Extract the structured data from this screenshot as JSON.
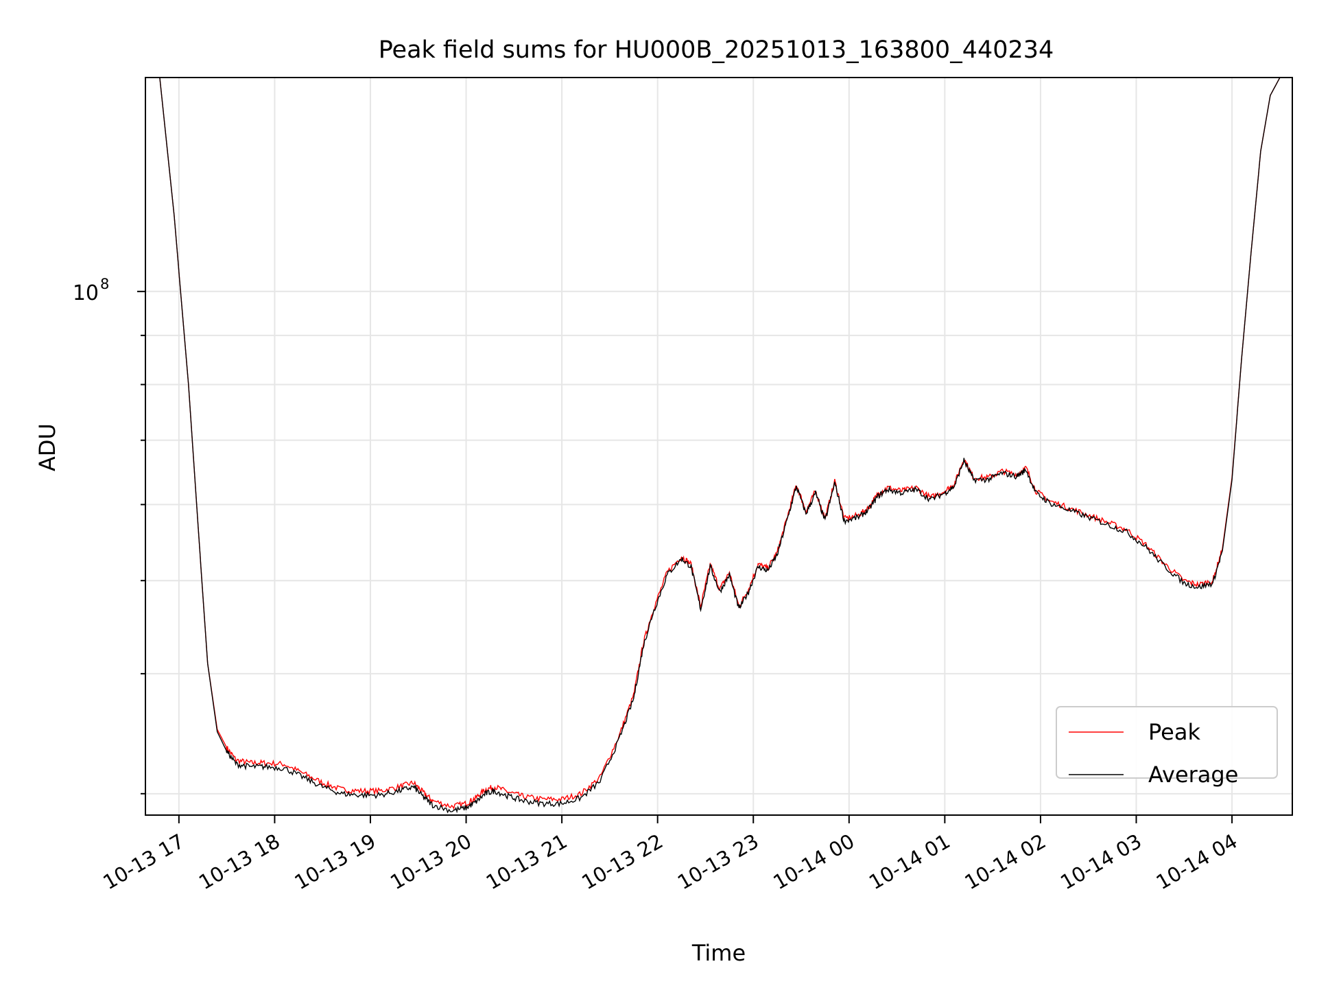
{
  "chart_data": {
    "type": "line",
    "title": "Peak field sums for HU000B_20251013_163800_440234",
    "xlabel": "Time",
    "ylabel": "ADU",
    "yscale": "log",
    "ylim": [
      28500000,
      167000000
    ],
    "xlim": [
      -0.35,
      11.63
    ],
    "x_ticks": [
      "10-13 17",
      "10-13 18",
      "10-13 19",
      "10-13 20",
      "10-13 21",
      "10-13 22",
      "10-13 23",
      "10-14 00",
      "10-14 01",
      "10-14 02",
      "10-14 03",
      "10-14 04"
    ],
    "y_major_tick": {
      "value": 100000000,
      "label": "10",
      "exponent": "8"
    },
    "y_minor_ticks": [
      30000000,
      40000000,
      50000000,
      60000000,
      70000000,
      80000000,
      90000000,
      200000000
    ],
    "grid": true,
    "legend_location": "lower right",
    "x_unit": "hours since 10-13 17:00",
    "series": [
      {
        "name": "Peak",
        "color": "#ff0000",
        "x": [
          -0.35,
          -0.2,
          -0.05,
          0.1,
          0.2,
          0.3,
          0.4,
          0.5,
          0.6,
          0.75,
          0.9,
          1.1,
          1.3,
          1.5,
          1.7,
          1.9,
          2.1,
          2.3,
          2.45,
          2.55,
          2.65,
          2.85,
          3.0,
          3.1,
          3.2,
          3.3,
          3.45,
          3.6,
          3.8,
          4.0,
          4.2,
          4.4,
          4.6,
          4.75,
          4.85,
          4.95,
          5.1,
          5.25,
          5.35,
          5.45,
          5.55,
          5.65,
          5.75,
          5.85,
          5.95,
          6.05,
          6.15,
          6.25,
          6.35,
          6.45,
          6.55,
          6.65,
          6.75,
          6.85,
          6.95,
          7.1,
          7.2,
          7.3,
          7.4,
          7.55,
          7.7,
          7.85,
          8.0,
          8.1,
          8.2,
          8.3,
          8.45,
          8.6,
          8.75,
          8.85,
          8.95,
          9.1,
          9.3,
          9.5,
          9.7,
          9.9,
          10.1,
          10.3,
          10.5,
          10.65,
          10.8,
          10.9,
          11.0,
          11.1,
          11.2,
          11.3,
          11.4,
          11.5,
          11.63
        ],
        "y": [
          167000000,
          167000000,
          120000000,
          80000000,
          57000000,
          41000000,
          35000000,
          33500000,
          32500000,
          32300000,
          32300000,
          32200000,
          31500000,
          30800000,
          30300000,
          30200000,
          30200000,
          30500000,
          30800000,
          30100000,
          29500000,
          29100000,
          29300000,
          29700000,
          30300000,
          30500000,
          30100000,
          29800000,
          29600000,
          29600000,
          30000000,
          31200000,
          34500000,
          38000000,
          43000000,
          46500000,
          51000000,
          53000000,
          52000000,
          47000000,
          52000000,
          49000000,
          51000000,
          47000000,
          49000000,
          52000000,
          51500000,
          53500000,
          58000000,
          63000000,
          59000000,
          62000000,
          58000000,
          63500000,
          58000000,
          58500000,
          59500000,
          61500000,
          62500000,
          62000000,
          62500000,
          61000000,
          62000000,
          63000000,
          67000000,
          64000000,
          64000000,
          65000000,
          64500000,
          65500000,
          62000000,
          60500000,
          59500000,
          58500000,
          57500000,
          56500000,
          54500000,
          52000000,
          50000000,
          49500000,
          50000000,
          54000000,
          64000000,
          85000000,
          110000000,
          140000000,
          160000000,
          167000000,
          167000000
        ]
      },
      {
        "name": "Average",
        "color": "#000000",
        "x": [
          -0.35,
          -0.2,
          -0.05,
          0.1,
          0.2,
          0.3,
          0.4,
          0.5,
          0.6,
          0.75,
          0.9,
          1.1,
          1.3,
          1.5,
          1.7,
          1.9,
          2.1,
          2.3,
          2.45,
          2.55,
          2.65,
          2.85,
          3.0,
          3.1,
          3.2,
          3.3,
          3.45,
          3.6,
          3.8,
          4.0,
          4.2,
          4.4,
          4.6,
          4.75,
          4.85,
          4.95,
          5.1,
          5.25,
          5.35,
          5.45,
          5.55,
          5.65,
          5.75,
          5.85,
          5.95,
          6.05,
          6.15,
          6.25,
          6.35,
          6.45,
          6.55,
          6.65,
          6.75,
          6.85,
          6.95,
          7.1,
          7.2,
          7.3,
          7.4,
          7.55,
          7.7,
          7.85,
          8.0,
          8.1,
          8.2,
          8.3,
          8.45,
          8.6,
          8.75,
          8.85,
          8.95,
          9.1,
          9.3,
          9.5,
          9.7,
          9.9,
          10.1,
          10.3,
          10.5,
          10.65,
          10.8,
          10.9,
          11.0,
          11.1,
          11.2,
          11.3,
          11.4,
          11.5,
          11.63
        ],
        "y": [
          167000000,
          167000000,
          120000000,
          80000000,
          57000000,
          41000000,
          34800000,
          33200000,
          32200000,
          32000000,
          32000000,
          31900000,
          31200000,
          30500000,
          30000000,
          29900000,
          29900000,
          30200000,
          30500000,
          29800000,
          29200000,
          28800000,
          29000000,
          29400000,
          30000000,
          30200000,
          29800000,
          29500000,
          29300000,
          29300000,
          29700000,
          30900000,
          34200000,
          37700000,
          42700000,
          46200000,
          50700000,
          52700000,
          51700000,
          46700000,
          51700000,
          48700000,
          50700000,
          46700000,
          48700000,
          51700000,
          51200000,
          53200000,
          57700000,
          62700000,
          58700000,
          61700000,
          57700000,
          63200000,
          57700000,
          58200000,
          59200000,
          61200000,
          62200000,
          61700000,
          62200000,
          60700000,
          61700000,
          62700000,
          66700000,
          63700000,
          63700000,
          64700000,
          64200000,
          65200000,
          61700000,
          60200000,
          59200000,
          58200000,
          57200000,
          56200000,
          54200000,
          51700000,
          49700000,
          49200000,
          49700000,
          53700000,
          63700000,
          85000000,
          110000000,
          140000000,
          160000000,
          167000000,
          167000000
        ]
      }
    ]
  }
}
